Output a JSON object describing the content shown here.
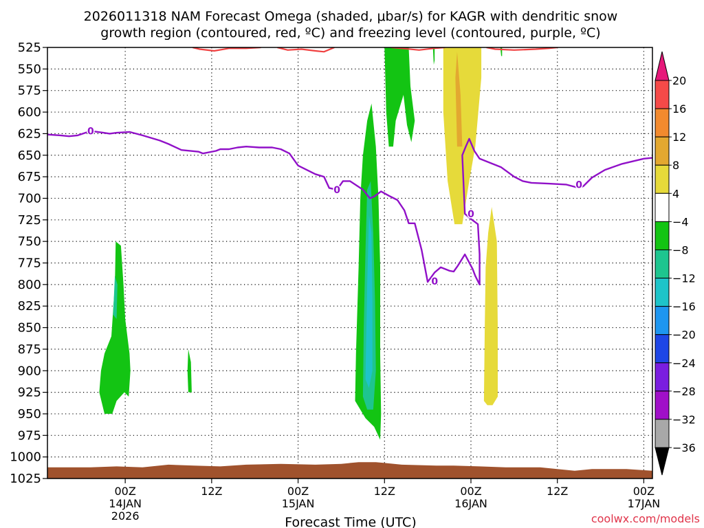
{
  "chart_data": {
    "type": "heatmap",
    "title_line1": "2026011318 NAM Forecast Omega (shaded, μbar/s) for KAGR with dendritic snow",
    "title_line2": "growth region (contoured, red, ºC) and freezing level (contoured, purple, ºC)",
    "xlabel": "Forecast Time (UTC)",
    "credit": "coolwx.com/models",
    "y_axis": {
      "unit": "hPa",
      "range": [
        525,
        1025
      ],
      "ticks": [
        525,
        550,
        575,
        600,
        625,
        650,
        675,
        700,
        725,
        750,
        775,
        800,
        825,
        850,
        875,
        900,
        925,
        950,
        975,
        1000,
        1025
      ]
    },
    "x_axis": {
      "unit": "forecast hour",
      "range": [
        -3,
        67
      ],
      "ticks": [
        {
          "hour": 6,
          "lines": [
            "00Z",
            "14JAN",
            "2026"
          ]
        },
        {
          "hour": 16,
          "lines": [
            "12Z",
            "",
            ""
          ]
        },
        {
          "hour": 26,
          "lines": [
            "00Z",
            "15JAN",
            ""
          ]
        },
        {
          "hour": 36,
          "lines": [
            "12Z",
            "",
            ""
          ]
        },
        {
          "hour": 46,
          "lines": [
            "00Z",
            "16JAN",
            ""
          ]
        },
        {
          "hour": 56,
          "lines": [
            "12Z",
            "",
            ""
          ]
        },
        {
          "hour": 66,
          "lines": [
            "00Z",
            "17JAN",
            ""
          ]
        }
      ]
    },
    "colorbar": {
      "levels": [
        "20",
        "16",
        "12",
        "8",
        "4",
        "−4",
        "−8",
        "−12",
        "−16",
        "−20",
        "−24",
        "−28",
        "−32",
        "−36"
      ],
      "colors": [
        "#f54a48",
        "#f28a2e",
        "#e3a830",
        "#e6da3a",
        "#ffffff",
        "#13c413",
        "#1ec58f",
        "#1ec4c9",
        "#1e96f0",
        "#1e46e6",
        "#7a1ee0",
        "#a010c8",
        "#a8a8a8"
      ],
      "top_color": "#e6197a",
      "bottom_color": "#000000"
    },
    "omega_regions": [
      {
        "name": "upward-motion-hour5",
        "color": "#13c413",
        "points": [
          [
            3.6,
            950
          ],
          [
            3.0,
            925
          ],
          [
            3.2,
            900
          ],
          [
            3.6,
            880
          ],
          [
            4.4,
            860
          ],
          [
            4.8,
            800
          ],
          [
            4.9,
            750
          ],
          [
            5.5,
            755
          ],
          [
            5.8,
            800
          ],
          [
            6.0,
            840
          ],
          [
            6.5,
            880
          ],
          [
            6.6,
            900
          ],
          [
            6.4,
            930
          ],
          [
            5.9,
            925
          ],
          [
            5.0,
            935
          ],
          [
            4.5,
            950
          ]
        ]
      },
      {
        "name": "upward-motion-hour5-core",
        "color": "#1ec58f",
        "points": [
          [
            4.6,
            835
          ],
          [
            4.8,
            790
          ],
          [
            5.1,
            800
          ],
          [
            5.0,
            840
          ]
        ]
      },
      {
        "name": "upward-motion-hour13",
        "color": "#13c413",
        "points": [
          [
            13.3,
            925
          ],
          [
            13.2,
            900
          ],
          [
            13.3,
            875
          ],
          [
            13.6,
            890
          ],
          [
            13.7,
            925
          ]
        ]
      },
      {
        "name": "upward-motion-hour35",
        "color": "#13c413",
        "points": [
          [
            32.6,
            935
          ],
          [
            32.7,
            880
          ],
          [
            33.0,
            780
          ],
          [
            33.2,
            700
          ],
          [
            33.5,
            650
          ],
          [
            34.0,
            610
          ],
          [
            34.5,
            590
          ],
          [
            35.0,
            640
          ],
          [
            35.3,
            700
          ],
          [
            35.5,
            780
          ],
          [
            35.5,
            880
          ],
          [
            35.6,
            950
          ],
          [
            35.5,
            980
          ],
          [
            34.8,
            965
          ],
          [
            33.8,
            955
          ]
        ]
      },
      {
        "name": "upward-motion-hour35-mid",
        "color": "#1ec58f",
        "points": [
          [
            33.5,
            930
          ],
          [
            33.6,
            850
          ],
          [
            33.8,
            760
          ],
          [
            34.0,
            690
          ],
          [
            34.4,
            680
          ],
          [
            34.7,
            740
          ],
          [
            34.9,
            820
          ],
          [
            35.0,
            900
          ],
          [
            34.7,
            945
          ],
          [
            34.0,
            945
          ]
        ]
      },
      {
        "name": "upward-motion-hour35-core",
        "color": "#1ec4c9",
        "points": [
          [
            33.8,
            910
          ],
          [
            34.0,
            800
          ],
          [
            34.2,
            720
          ],
          [
            34.5,
            740
          ],
          [
            34.6,
            820
          ],
          [
            34.6,
            900
          ],
          [
            34.2,
            920
          ]
        ]
      },
      {
        "name": "upward-motion-hour37",
        "color": "#13c413",
        "points": [
          [
            36.0,
            525
          ],
          [
            38.8,
            525
          ],
          [
            39.0,
            570
          ],
          [
            39.5,
            610
          ],
          [
            39.1,
            635
          ],
          [
            38.6,
            615
          ],
          [
            38.2,
            580
          ],
          [
            37.3,
            610
          ],
          [
            37.0,
            640
          ],
          [
            36.5,
            640
          ],
          [
            36.2,
            600
          ]
        ]
      },
      {
        "name": "sinking-motion-hour44",
        "color": "#e6da3a",
        "points": [
          [
            42.8,
            525
          ],
          [
            44.8,
            525
          ],
          [
            45.5,
            525
          ],
          [
            47.2,
            525
          ],
          [
            47.2,
            560
          ],
          [
            46.5,
            640
          ],
          [
            45.8,
            680
          ],
          [
            45.0,
            730
          ],
          [
            44.1,
            730
          ],
          [
            43.3,
            680
          ],
          [
            42.8,
            600
          ]
        ]
      },
      {
        "name": "sinking-motion-hour44-core",
        "color": "#e3a830",
        "points": [
          [
            44.2,
            560
          ],
          [
            44.4,
            530
          ],
          [
            44.8,
            580
          ],
          [
            45.0,
            640
          ],
          [
            44.4,
            640
          ]
        ]
      },
      {
        "name": "sinking-motion-hour49",
        "color": "#e6da3a",
        "points": [
          [
            47.5,
            935
          ],
          [
            47.6,
            850
          ],
          [
            47.7,
            780
          ],
          [
            48.0,
            740
          ],
          [
            48.4,
            710
          ],
          [
            49.0,
            750
          ],
          [
            49.1,
            850
          ],
          [
            49.1,
            930
          ],
          [
            48.5,
            940
          ],
          [
            47.9,
            940
          ]
        ]
      },
      {
        "name": "upward-motion-hour42",
        "color": "#13c413",
        "points": [
          [
            41.6,
            525
          ],
          [
            41.8,
            525
          ],
          [
            41.8,
            540
          ],
          [
            41.7,
            545
          ]
        ]
      },
      {
        "name": "upward-motion-hour50",
        "color": "#13c413",
        "points": [
          [
            49.4,
            525
          ],
          [
            49.6,
            525
          ],
          [
            49.6,
            535
          ],
          [
            49.5,
            535
          ]
        ]
      }
    ],
    "dendritic_snow_contours": [
      {
        "name": "dgz-contour-left",
        "points": [
          [
            13.8,
            525
          ],
          [
            14.6,
            527
          ],
          [
            16.3,
            529
          ],
          [
            18.0,
            526
          ],
          [
            20.0,
            526
          ],
          [
            21.7,
            525
          ]
        ]
      },
      {
        "name": "dgz-contour-midleft",
        "points": [
          [
            23.6,
            525
          ],
          [
            24.8,
            528
          ],
          [
            26.4,
            527
          ],
          [
            28.0,
            529
          ],
          [
            29.0,
            530
          ],
          [
            30.2,
            525
          ]
        ]
      },
      {
        "name": "dgz-contour-midright",
        "points": [
          [
            36.8,
            525
          ],
          [
            38.0,
            526
          ],
          [
            40.0,
            528
          ],
          [
            41.7,
            526
          ],
          [
            43.0,
            525
          ]
        ]
      },
      {
        "name": "dgz-contour-right",
        "points": [
          [
            47.8,
            525
          ],
          [
            48.8,
            527
          ],
          [
            51.0,
            528
          ],
          [
            53.5,
            527
          ],
          [
            55.0,
            526
          ],
          [
            56.0,
            525
          ]
        ]
      }
    ],
    "freezing_level_contour": {
      "label": "0",
      "points": [
        [
          -3,
          626
        ],
        [
          -1.5,
          627
        ],
        [
          -0.5,
          628
        ],
        [
          0.5,
          627
        ],
        [
          2.0,
          622
        ],
        [
          3.5,
          624
        ],
        [
          4.2,
          625
        ],
        [
          5.0,
          624
        ],
        [
          6.5,
          623
        ],
        [
          8.0,
          627
        ],
        [
          10.0,
          633
        ],
        [
          11.0,
          637
        ],
        [
          12.5,
          644
        ],
        [
          14.5,
          646
        ],
        [
          15.0,
          648
        ],
        [
          16.5,
          645
        ],
        [
          17.0,
          643
        ],
        [
          18.0,
          643
        ],
        [
          19.0,
          641
        ],
        [
          20.0,
          640
        ],
        [
          21.5,
          641
        ],
        [
          23.0,
          641
        ],
        [
          24.0,
          643
        ],
        [
          25.0,
          648
        ],
        [
          26.0,
          662
        ],
        [
          28.0,
          672
        ],
        [
          29.0,
          675
        ],
        [
          29.6,
          688
        ],
        [
          30.5,
          690
        ],
        [
          31.2,
          680
        ],
        [
          32.0,
          680
        ],
        [
          33.5,
          690
        ],
        [
          34.3,
          700
        ],
        [
          34.8,
          698
        ],
        [
          35.6,
          692
        ],
        [
          36.5,
          697
        ],
        [
          37.5,
          702
        ],
        [
          38.3,
          714
        ],
        [
          38.8,
          729
        ],
        [
          39.5,
          729
        ],
        [
          40.3,
          760
        ],
        [
          41.0,
          797
        ],
        [
          41.8,
          786
        ],
        [
          42.5,
          780
        ],
        [
          43.5,
          784
        ],
        [
          44.0,
          785
        ],
        [
          44.5,
          778
        ],
        [
          45.3,
          765
        ],
        [
          46.2,
          782
        ],
        [
          46.5,
          790
        ],
        [
          47.0,
          800
        ],
        [
          47.0,
          765
        ],
        [
          46.8,
          730
        ],
        [
          46.0,
          724
        ],
        [
          45.3,
          718
        ],
        [
          45.0,
          650
        ],
        [
          45.4,
          640
        ],
        [
          45.8,
          631
        ],
        [
          46.4,
          645
        ],
        [
          47.0,
          654
        ],
        [
          48.5,
          660
        ],
        [
          49.5,
          664
        ],
        [
          51.0,
          675
        ],
        [
          52.0,
          680
        ],
        [
          53.0,
          682
        ],
        [
          55.0,
          683
        ],
        [
          57.0,
          684
        ],
        [
          58.5,
          688
        ],
        [
          59.0,
          686
        ],
        [
          60.0,
          676
        ],
        [
          61.5,
          667
        ],
        [
          63.5,
          660
        ],
        [
          66.0,
          654
        ],
        [
          68.0,
          652
        ],
        [
          70.0,
          650
        ],
        [
          71.0,
          645
        ]
      ],
      "label_positions": [
        [
          2.0,
          622
        ],
        [
          30.5,
          690
        ],
        [
          41.8,
          796
        ],
        [
          46.0,
          718
        ],
        [
          58.5,
          684
        ]
      ]
    },
    "terrain": {
      "color": "#a0522d",
      "surface_pressure": [
        [
          -3,
          1012
        ],
        [
          2,
          1012
        ],
        [
          5,
          1011
        ],
        [
          8,
          1012
        ],
        [
          11,
          1009
        ],
        [
          14,
          1010
        ],
        [
          17,
          1011
        ],
        [
          20,
          1009
        ],
        [
          24,
          1008
        ],
        [
          28,
          1009
        ],
        [
          31,
          1008
        ],
        [
          33,
          1006
        ],
        [
          35,
          1006
        ],
        [
          36,
          1007
        ],
        [
          38,
          1009
        ],
        [
          42,
          1010
        ],
        [
          44,
          1010
        ],
        [
          47,
          1011
        ],
        [
          50,
          1012
        ],
        [
          54,
          1012
        ],
        [
          56,
          1014
        ],
        [
          58,
          1016
        ],
        [
          60,
          1014
        ],
        [
          64,
          1014
        ],
        [
          67,
          1016
        ]
      ]
    }
  }
}
